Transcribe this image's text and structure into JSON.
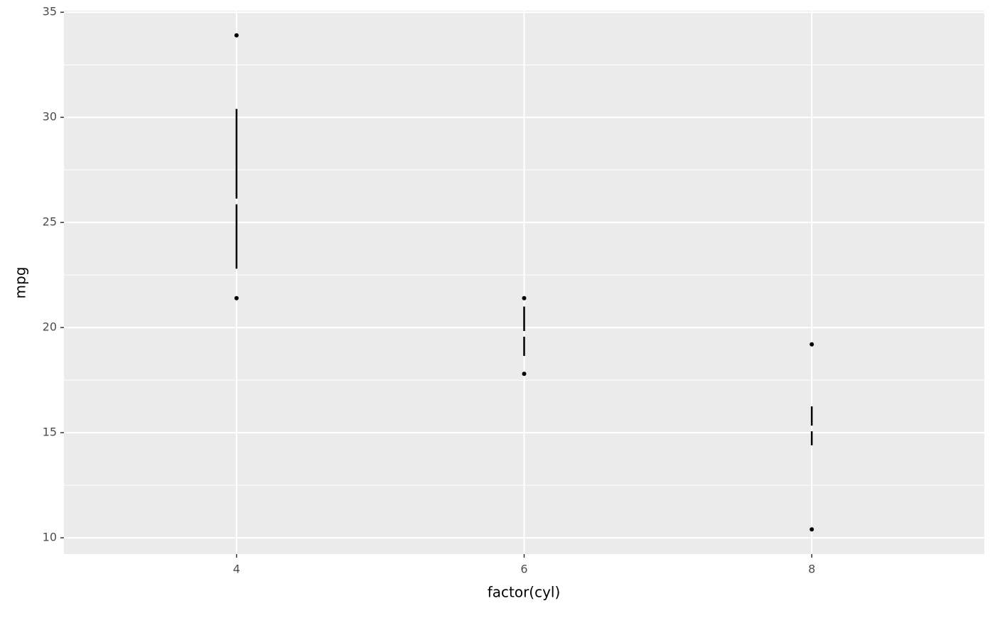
{
  "chart_data": {
    "type": "tufteboxplot",
    "x_label": "factor(cyl)",
    "y_label": "mpg",
    "categories": [
      "4",
      "6",
      "8"
    ],
    "min": [
      21.4,
      17.8,
      10.4
    ],
    "q1": [
      22.8,
      18.65,
      14.4
    ],
    "median": [
      26.0,
      19.7,
      15.2
    ],
    "q3": [
      30.4,
      21.0,
      16.25
    ],
    "max": [
      33.9,
      21.4,
      19.2
    ],
    "color": "#000000",
    "ylim": [
      9.225,
      35.075
    ],
    "yticks": [
      10,
      15,
      20,
      25,
      30,
      35
    ],
    "grid": true
  }
}
